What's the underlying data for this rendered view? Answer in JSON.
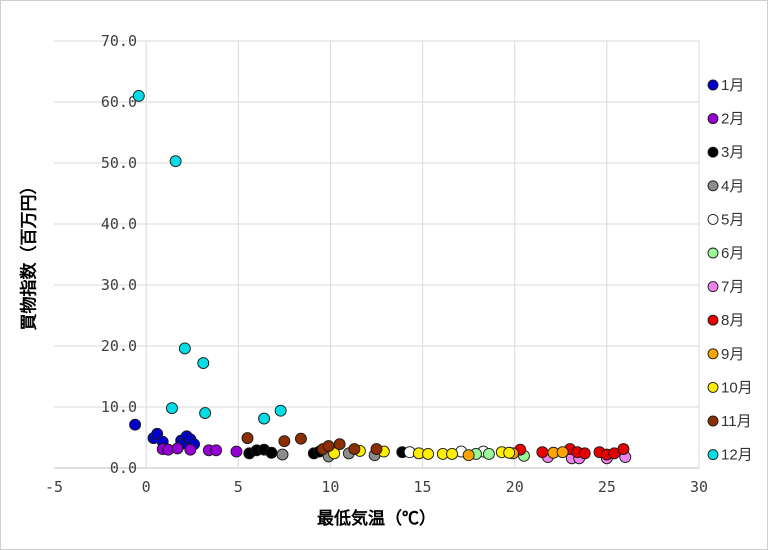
{
  "chart_data": {
    "type": "scatter",
    "title": "",
    "xlabel": "最低気温（℃）",
    "ylabel": "買物指数（百万円）",
    "xlim": [
      -5,
      30
    ],
    "ylim": [
      0,
      70
    ],
    "xticks": [
      -5,
      0,
      5,
      10,
      15,
      20,
      25,
      30
    ],
    "yticks": [
      0,
      10,
      20,
      30,
      40,
      50,
      60,
      70
    ],
    "ytick_format": "one-decimal",
    "grid": true,
    "legend_position": "right",
    "marker": "circle",
    "grid_color": "#d9d9d9",
    "axis_color": "#bfbfbf",
    "marker_outline": "#1a1a1a",
    "series": [
      {
        "name": "1月",
        "color": "#0000CD",
        "points": [
          [
            -0.6,
            7.1
          ],
          [
            0.4,
            4.9
          ],
          [
            0.6,
            5.6
          ],
          [
            0.9,
            4.3
          ],
          [
            1.9,
            4.5
          ],
          [
            2.0,
            4.0
          ],
          [
            2.2,
            5.2
          ],
          [
            2.4,
            4.7
          ],
          [
            2.6,
            3.9
          ]
        ]
      },
      {
        "name": "2月",
        "color": "#9400D3",
        "points": [
          [
            0.9,
            3.1
          ],
          [
            1.2,
            3.0
          ],
          [
            1.7,
            3.2
          ],
          [
            2.4,
            3.0
          ],
          [
            3.4,
            2.9
          ],
          [
            3.8,
            2.9
          ],
          [
            4.9,
            2.7
          ]
        ]
      },
      {
        "name": "3月",
        "color": "#000000",
        "points": [
          [
            5.6,
            2.4
          ],
          [
            6.0,
            2.9
          ],
          [
            6.4,
            3.0
          ],
          [
            6.8,
            2.5
          ],
          [
            9.1,
            2.4
          ],
          [
            9.4,
            2.7
          ],
          [
            13.9,
            2.6
          ]
        ]
      },
      {
        "name": "4月",
        "color": "#8C8C8C",
        "points": [
          [
            7.4,
            2.2
          ],
          [
            9.9,
            1.9
          ],
          [
            11.0,
            2.4
          ],
          [
            12.4,
            2.1
          ]
        ]
      },
      {
        "name": "5月",
        "color": "#FFFFFF",
        "points": [
          [
            14.3,
            2.6
          ],
          [
            17.1,
            2.7
          ],
          [
            18.3,
            2.7
          ]
        ]
      },
      {
        "name": "6月",
        "color": "#98FB98",
        "points": [
          [
            17.9,
            2.3
          ],
          [
            18.6,
            2.3
          ],
          [
            20.5,
            2.0
          ]
        ]
      },
      {
        "name": "7月",
        "color": "#EE82EE",
        "points": [
          [
            21.8,
            1.8
          ],
          [
            23.1,
            1.6
          ],
          [
            23.5,
            1.6
          ],
          [
            25.0,
            1.6
          ],
          [
            26.0,
            1.8
          ]
        ]
      },
      {
        "name": "8月",
        "color": "#E60000",
        "points": [
          [
            20.3,
            3.0
          ],
          [
            21.5,
            2.6
          ],
          [
            23.0,
            3.1
          ],
          [
            23.4,
            2.6
          ],
          [
            23.8,
            2.4
          ],
          [
            24.6,
            2.6
          ],
          [
            25.0,
            2.2
          ],
          [
            25.4,
            2.4
          ],
          [
            25.9,
            3.1
          ]
        ]
      },
      {
        "name": "9月",
        "color": "#FFA500",
        "points": [
          [
            17.5,
            2.1
          ],
          [
            19.9,
            2.4
          ],
          [
            22.1,
            2.5
          ],
          [
            22.6,
            2.6
          ]
        ]
      },
      {
        "name": "10月",
        "color": "#FFEE00",
        "points": [
          [
            10.2,
            2.4
          ],
          [
            11.6,
            2.8
          ],
          [
            12.9,
            2.7
          ],
          [
            14.8,
            2.4
          ],
          [
            15.3,
            2.3
          ],
          [
            16.1,
            2.3
          ],
          [
            16.6,
            2.3
          ],
          [
            19.3,
            2.6
          ],
          [
            19.7,
            2.5
          ]
        ]
      },
      {
        "name": "11月",
        "color": "#8B2E00",
        "points": [
          [
            5.5,
            4.9
          ],
          [
            7.5,
            4.4
          ],
          [
            8.4,
            4.8
          ],
          [
            9.6,
            3.1
          ],
          [
            9.9,
            3.6
          ],
          [
            10.5,
            3.9
          ],
          [
            11.3,
            3.1
          ],
          [
            12.5,
            3.1
          ]
        ]
      },
      {
        "name": "12月",
        "color": "#00DDE6",
        "points": [
          [
            -0.4,
            61.0
          ],
          [
            1.6,
            50.3
          ],
          [
            2.1,
            19.6
          ],
          [
            3.1,
            17.2
          ],
          [
            1.4,
            9.8
          ],
          [
            3.2,
            9.0
          ],
          [
            6.4,
            8.1
          ],
          [
            7.3,
            9.4
          ]
        ]
      }
    ]
  }
}
